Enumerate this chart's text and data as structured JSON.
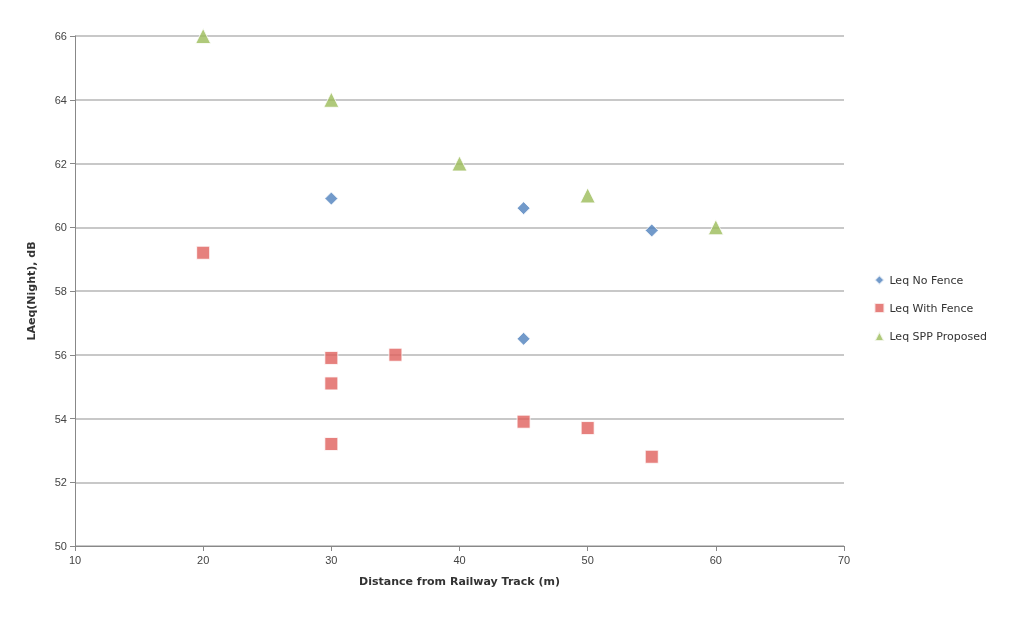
{
  "chart_data": {
    "type": "scatter",
    "xlabel": "Distance from Railway Track (m)",
    "ylabel": "LAeq(Night), dB",
    "xlim": [
      10,
      70
    ],
    "xticks": [
      10,
      20,
      30,
      40,
      50,
      60,
      70
    ],
    "ylim": [
      50,
      66
    ],
    "yticks": [
      50,
      52,
      54,
      56,
      58,
      60,
      62,
      64,
      66
    ],
    "grid": "y",
    "legend": "right",
    "series": [
      {
        "name": "Leq No Fence",
        "color": "#4f81bd",
        "marker": "diamond",
        "x": [
          30,
          45,
          55,
          45
        ],
        "values": [
          60.9,
          60.6,
          59.9,
          56.5
        ]
      },
      {
        "name": "Leq With Fence",
        "color": "#e0605c",
        "marker": "square",
        "x": [
          20,
          30,
          30,
          30,
          35,
          45,
          50,
          55
        ],
        "values": [
          59.2,
          55.9,
          55.1,
          53.2,
          56.0,
          53.9,
          53.7,
          52.8
        ]
      },
      {
        "name": "Leq SPP Proposed",
        "color": "#9bbb59",
        "marker": "triangle",
        "x": [
          20,
          30,
          40,
          50,
          60
        ],
        "values": [
          66,
          64,
          62,
          61,
          60
        ]
      }
    ]
  }
}
